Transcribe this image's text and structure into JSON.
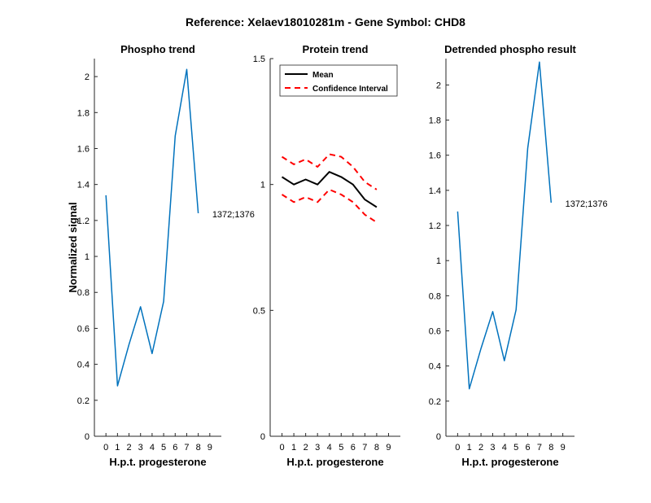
{
  "figure": {
    "title": "Reference:  Xelaev18010281m - Gene Symbol:  CHD8"
  },
  "chart_data": [
    {
      "type": "line",
      "title": "Phospho trend",
      "xlabel": "H.p.t. progesterone",
      "ylabel": "Normalized signal",
      "xlim": [
        -1,
        10
      ],
      "ylim": [
        0,
        2.1
      ],
      "xticks": [
        0,
        1,
        2,
        3,
        4,
        5,
        6,
        7,
        8,
        9
      ],
      "yticks": [
        0,
        0.2,
        0.4,
        0.6,
        0.8,
        1,
        1.2,
        1.4,
        1.6,
        1.8,
        2
      ],
      "series": [
        {
          "color": "#0072BD",
          "x": [
            0,
            1,
            2,
            3,
            4,
            5,
            6,
            7,
            8,
            9
          ],
          "y": [
            1.34,
            0.28,
            0.51,
            0.72,
            0.46,
            0.75,
            1.67,
            2.04,
            1.24,
            null
          ]
        }
      ],
      "annotation": {
        "text": "1372;1376",
        "x": 9,
        "y": 1.24
      }
    },
    {
      "type": "line",
      "title": "Protein trend",
      "xlabel": "H.p.t. progesterone",
      "ylabel": "",
      "xlim": [
        -1,
        10
      ],
      "ylim": [
        0,
        1.5
      ],
      "xticks": [
        0,
        1,
        2,
        3,
        4,
        5,
        6,
        7,
        8,
        9
      ],
      "yticks": [
        0,
        0.5,
        1,
        1.5
      ],
      "legend": {
        "placement": "top-left",
        "entries": [
          "Mean",
          "Confidence Interval"
        ]
      },
      "series": [
        {
          "name": "Mean",
          "color": "#000000",
          "style": "solid",
          "x": [
            0,
            1,
            2,
            3,
            4,
            5,
            6,
            7,
            8,
            9
          ],
          "y": [
            1.03,
            1.0,
            1.02,
            1.0,
            1.05,
            1.03,
            1.0,
            0.94,
            0.91,
            null
          ]
        },
        {
          "name": "Confidence Interval",
          "color": "#FF0000",
          "style": "dashed",
          "x": [
            0,
            1,
            2,
            3,
            4,
            5,
            6,
            7,
            8,
            9
          ],
          "y": [
            1.11,
            1.08,
            1.1,
            1.07,
            1.12,
            1.11,
            1.07,
            1.01,
            0.98,
            null
          ]
        },
        {
          "name": "Confidence Interval",
          "color": "#FF0000",
          "style": "dashed",
          "x": [
            0,
            1,
            2,
            3,
            4,
            5,
            6,
            7,
            8,
            9
          ],
          "y": [
            0.96,
            0.93,
            0.95,
            0.93,
            0.98,
            0.96,
            0.93,
            0.88,
            0.85,
            null
          ]
        }
      ]
    },
    {
      "type": "line",
      "title": "Detrended phospho result",
      "xlabel": "H.p.t. progesterone",
      "ylabel": "",
      "xlim": [
        -1,
        10
      ],
      "ylim": [
        0,
        2.15
      ],
      "xticks": [
        0,
        1,
        2,
        3,
        4,
        5,
        6,
        7,
        8,
        9
      ],
      "yticks": [
        0,
        0.2,
        0.4,
        0.6,
        0.8,
        1,
        1.2,
        1.4,
        1.6,
        1.8,
        2
      ],
      "series": [
        {
          "color": "#0072BD",
          "x": [
            0,
            1,
            2,
            3,
            4,
            5,
            6,
            7,
            8,
            9
          ],
          "y": [
            1.28,
            0.27,
            0.5,
            0.71,
            0.43,
            0.72,
            1.64,
            2.13,
            1.33,
            null
          ]
        }
      ],
      "annotation": {
        "text": "1372;1376",
        "x": 9,
        "y": 1.33
      }
    }
  ]
}
